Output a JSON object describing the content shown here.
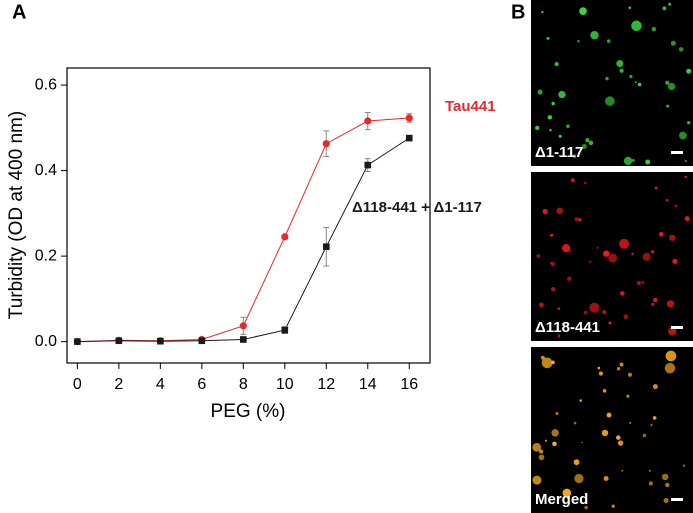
{
  "chart_data": {
    "type": "line",
    "panel_label": "A",
    "x_label": "PEG (%)",
    "y_label": "Turbidity (OD at 400 nm)",
    "x": [
      0,
      2,
      4,
      6,
      8,
      10,
      12,
      14,
      16
    ],
    "series": [
      {
        "name": "Tau441",
        "color": "#e8282c",
        "marker": "circle",
        "values": [
          0.0,
          0.003,
          0.002,
          0.005,
          0.037,
          0.245,
          0.463,
          0.516,
          0.523
        ],
        "errors": [
          0.003,
          0.004,
          0.003,
          0.004,
          0.02,
          0.005,
          0.03,
          0.02,
          0.01
        ]
      },
      {
        "name": "Δ118-441 + Δ1-117",
        "color": "#1a1a1a",
        "marker": "square",
        "values": [
          0.0,
          0.002,
          0.001,
          0.002,
          0.005,
          0.027,
          0.222,
          0.413,
          0.476
        ],
        "errors": [
          0.003,
          0.004,
          0.003,
          0.003,
          0.003,
          0.008,
          0.045,
          0.015,
          0.005
        ]
      }
    ],
    "xlim": [
      -0.5,
      17
    ],
    "ylim": [
      -0.05,
      0.64
    ],
    "xticks": [
      0,
      2,
      4,
      6,
      8,
      10,
      12,
      14,
      16
    ],
    "yticks": [
      {
        "value": 0,
        "label": "0.0"
      },
      0.2,
      0.4,
      0.6
    ]
  },
  "panel_b": {
    "label": "B",
    "images": [
      {
        "caption": "Δ1-117",
        "color": "#3de03d"
      },
      {
        "caption": "Δ118-441",
        "color": "#f01a1a"
      },
      {
        "caption": "Merged",
        "color": "#ffb020"
      }
    ]
  }
}
